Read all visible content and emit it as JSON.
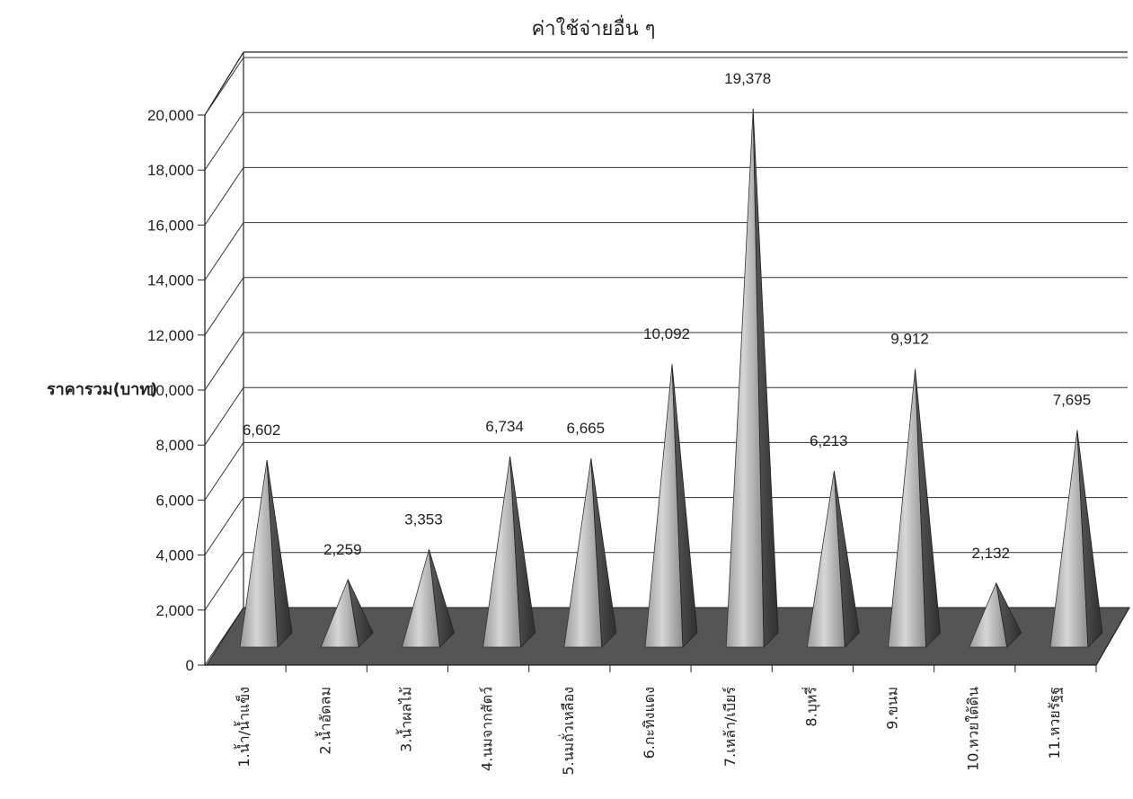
{
  "chart_data": {
    "type": "bar",
    "title": "ค่าใช้จ่ายอื่น ๆ",
    "xlabel": "",
    "ylabel": "ราคารวม(บาท)",
    "ylim": [
      0,
      20000
    ],
    "yticks": [
      0,
      2000,
      4000,
      6000,
      8000,
      10000,
      12000,
      14000,
      16000,
      18000,
      20000
    ],
    "ytick_labels": [
      "0",
      "2,000",
      "4,000",
      "6,000",
      "8,000",
      "10,000",
      "12,000",
      "14,000",
      "16,000",
      "18,000",
      "20,000"
    ],
    "grid": true,
    "categories": [
      "1.น้ำ/น้ำแข็ง",
      "2.น้ำอัดลม",
      "3.น้ำผลไม้",
      "4.นมจากสัตว์",
      "5.นมถั่วเหลือง",
      "6.กะทิงแดง",
      "7.เหล้า/เบียร์",
      "8.บุหรี่",
      "9.ขนม",
      "10.หวยใต้ดิน",
      "11.หวยรัฐฐ"
    ],
    "values": [
      6602,
      2259,
      3353,
      6734,
      6665,
      10092,
      19378,
      6213,
      9912,
      2132,
      7695
    ],
    "value_labels": [
      "6,602",
      "2,259",
      "3,353",
      "6,734",
      "6,665",
      "10,092",
      "19,378",
      "6,213",
      "9,912",
      "2,132",
      "7,695"
    ]
  }
}
